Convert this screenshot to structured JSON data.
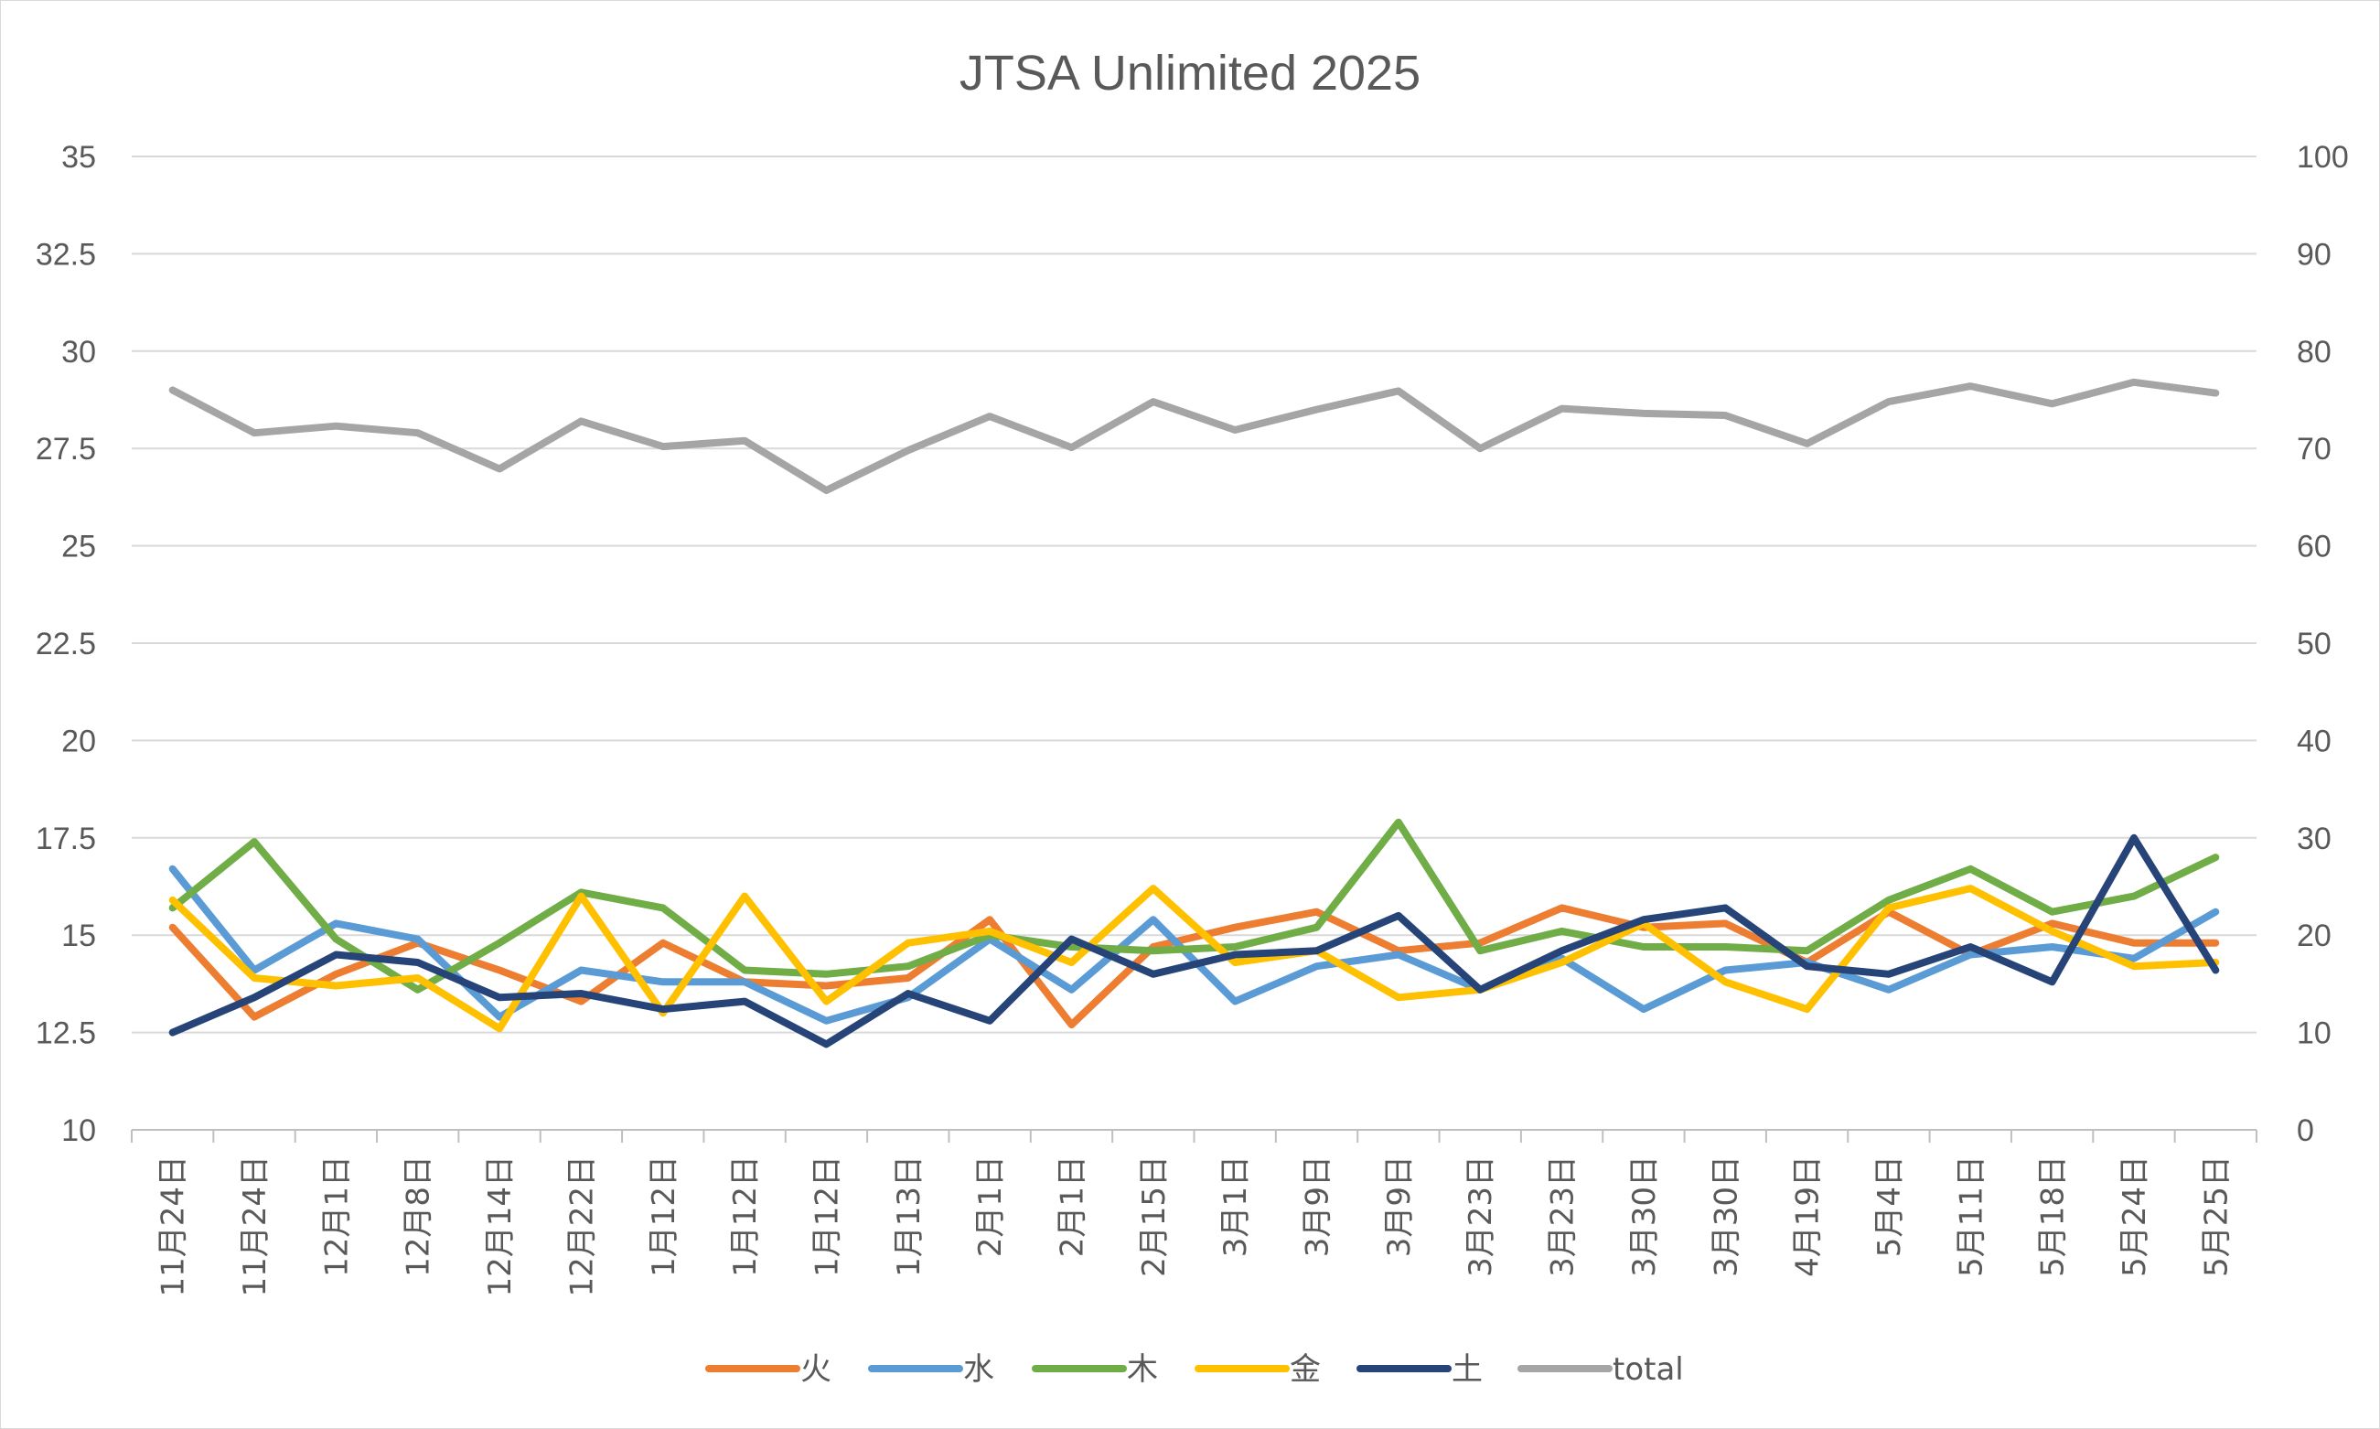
{
  "chart_data": {
    "type": "line",
    "title": "JTSA Unlimited 2025",
    "xlabel": "",
    "ylabel": "",
    "ylim": [
      10,
      35
    ],
    "y2lim": [
      0,
      100
    ],
    "yticks": [
      "10",
      "12.5",
      "15",
      "17.5",
      "20",
      "22.5",
      "25",
      "27.5",
      "30",
      "32.5",
      "35"
    ],
    "y2ticks": [
      "0",
      "10",
      "20",
      "30",
      "40",
      "50",
      "60",
      "70",
      "80",
      "90",
      "100"
    ],
    "grid": true,
    "legend_position": "bottom",
    "categories": [
      "11月24日",
      "11月24日",
      "12月1日",
      "12月8日",
      "12月14日",
      "12月22日",
      "1月12日",
      "1月12日",
      "1月12日",
      "1月13日",
      "2月1日",
      "2月1日",
      "2月15日",
      "3月1日",
      "3月9日",
      "3月9日",
      "3月23日",
      "3月23日",
      "3月30日",
      "3月30日",
      "4月19日",
      "5月4日",
      "5月11日",
      "5月18日",
      "5月24日",
      "5月25日"
    ],
    "series": [
      {
        "name": "火",
        "color": "#ED7D31",
        "axis": "left",
        "values": [
          15.2,
          12.9,
          14.0,
          14.8,
          14.1,
          13.3,
          14.8,
          13.8,
          13.7,
          13.9,
          15.4,
          12.7,
          14.7,
          15.2,
          15.6,
          14.6,
          14.8,
          15.7,
          15.2,
          15.3,
          14.3,
          15.6,
          14.5,
          15.3,
          14.8,
          14.8
        ]
      },
      {
        "name": "水",
        "color": "#5B9BD5",
        "axis": "left",
        "values": [
          16.7,
          14.1,
          15.3,
          14.9,
          12.9,
          14.1,
          13.8,
          13.8,
          12.8,
          13.4,
          14.9,
          13.6,
          15.4,
          13.3,
          14.2,
          14.5,
          13.6,
          14.4,
          13.1,
          14.1,
          14.3,
          13.6,
          14.5,
          14.7,
          14.4,
          15.6
        ]
      },
      {
        "name": "木",
        "color": "#70AD47",
        "axis": "left",
        "values": [
          15.7,
          17.4,
          14.9,
          13.6,
          14.8,
          16.1,
          15.7,
          14.1,
          14.0,
          14.2,
          15.0,
          14.7,
          14.6,
          14.7,
          15.2,
          17.9,
          14.6,
          15.1,
          14.7,
          14.7,
          14.6,
          15.9,
          16.7,
          15.6,
          16.0,
          17.0
        ]
      },
      {
        "name": "金",
        "color": "#FFC000",
        "axis": "left",
        "values": [
          15.9,
          13.9,
          13.7,
          13.9,
          12.6,
          16.0,
          13.0,
          16.0,
          13.3,
          14.8,
          15.1,
          14.3,
          16.2,
          14.3,
          14.6,
          13.4,
          13.6,
          14.3,
          15.3,
          13.8,
          13.1,
          15.7,
          16.2,
          15.1,
          14.2,
          14.3
        ]
      },
      {
        "name": "土",
        "color": "#264478",
        "axis": "left",
        "values": [
          12.5,
          13.4,
          14.5,
          14.3,
          13.4,
          13.5,
          13.1,
          13.3,
          12.2,
          13.5,
          12.8,
          14.9,
          14.0,
          14.5,
          14.6,
          15.5,
          13.6,
          14.6,
          15.4,
          15.7,
          14.2,
          14.0,
          14.7,
          13.8,
          17.5,
          14.1
        ]
      },
      {
        "name": "total",
        "color": "#A5A5A5",
        "axis": "right",
        "values": [
          76.0,
          71.6,
          72.3,
          71.6,
          67.9,
          72.8,
          70.2,
          70.8,
          65.7,
          69.8,
          73.3,
          70.1,
          74.8,
          71.9,
          74.0,
          75.9,
          70.0,
          74.1,
          73.6,
          73.4,
          70.5,
          74.8,
          76.4,
          74.6,
          76.8,
          75.7
        ]
      }
    ]
  }
}
